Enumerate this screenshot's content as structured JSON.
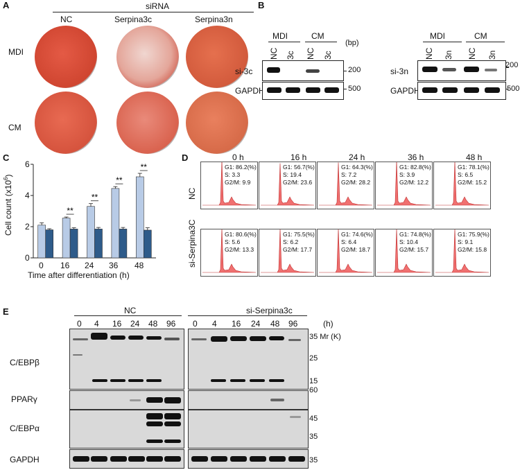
{
  "panels": {
    "A": "A",
    "B": "B",
    "C": "C",
    "D": "D",
    "E": "E"
  },
  "panelA": {
    "header": "siRNA",
    "columns": [
      "NC",
      "Serpina3c",
      "Serpina3n"
    ],
    "rows": [
      "MDI",
      "CM"
    ]
  },
  "panelB": {
    "left": {
      "groups": [
        "MDI",
        "CM"
      ],
      "lanes": [
        "NC",
        "3c",
        "NC",
        "3c"
      ],
      "rows": [
        "si-3c",
        "GAPDH"
      ],
      "unit": "(bp)",
      "markers": [
        "200",
        "500"
      ]
    },
    "right": {
      "groups": [
        "MDI",
        "CM"
      ],
      "lanes": [
        "NC",
        "3n",
        "NC",
        "3n"
      ],
      "rows": [
        "si-3n",
        "GAPDH"
      ],
      "markers": [
        "200",
        "500"
      ]
    }
  },
  "chart_data": {
    "type": "bar",
    "categories": [
      "0",
      "16",
      "24",
      "36",
      "48"
    ],
    "series": [
      {
        "values": [
          2.1,
          2.55,
          3.3,
          4.45,
          5.2
        ],
        "errors": [
          0.15,
          0.07,
          0.18,
          0.12,
          0.22
        ],
        "color": "#b8cbe6"
      },
      {
        "values": [
          1.8,
          1.85,
          1.85,
          1.85,
          1.78
        ],
        "errors": [
          0.07,
          0.08,
          0.1,
          0.1,
          0.15
        ],
        "color": "#2e5b8a"
      }
    ],
    "significance": [
      "",
      "**",
      "**",
      "**",
      "**"
    ],
    "xlabel": "Time after differentiation (h)",
    "ylabel": "Cell count (x10",
    "ylabel_sup": "6",
    "ylabel_end": ")",
    "yticks": [
      "0",
      "2",
      "4",
      "6"
    ],
    "ylim": [
      0,
      6
    ]
  },
  "panelD": {
    "times": [
      "0 h",
      "16 h",
      "24 h",
      "36 h",
      "48 h"
    ],
    "rows": [
      "NC",
      "si-Serpina3C"
    ],
    "stats": [
      [
        [
          "G1: 86.2(%)",
          "S: 3.3",
          "G2/M: 9.9"
        ],
        [
          "G1: 56.7(%)",
          "S: 19.4",
          "G2/M: 23.6"
        ],
        [
          "G1: 64.3(%)",
          "S: 7.2",
          "G2/M: 28.2"
        ],
        [
          "G1: 82.8(%)",
          "S: 3.9",
          "G2/M: 12.2"
        ],
        [
          "G1: 78.1(%)",
          "S: 6.5",
          "G2/M: 15.2"
        ]
      ],
      [
        [
          "G1: 80.6(%)",
          "S: 5.6",
          "G2/M: 13.3"
        ],
        [
          "G1: 75.5(%)",
          "S: 6.2",
          "G2/M: 17.7"
        ],
        [
          "G1: 74.6(%)",
          "S: 6.4",
          "G2/M: 18.7"
        ],
        [
          "G1: 74.8(%)",
          "S: 10.4",
          "G2/M: 15.7"
        ],
        [
          "G1: 75.9(%)",
          "S: 9.1",
          "G2/M: 15.8"
        ]
      ]
    ]
  },
  "panelE": {
    "groups": [
      "NC",
      "si-Serpina3c"
    ],
    "timepoints": [
      "0",
      "4",
      "16",
      "24",
      "48",
      "96"
    ],
    "unit": "(h)",
    "proteins": [
      "C/EBPβ",
      "PPARγ",
      "C/EBPα",
      "GAPDH"
    ],
    "mr_label": "35 Mr (K)",
    "markers": [
      "35",
      "25",
      "15",
      "60",
      "45",
      "35",
      "35"
    ]
  }
}
